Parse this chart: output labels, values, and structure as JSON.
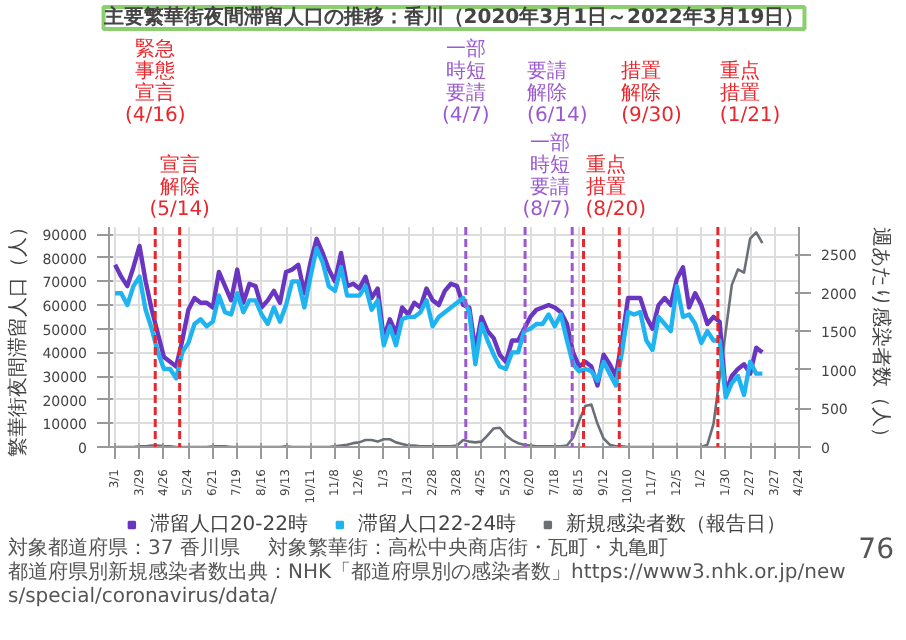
{
  "chart_data": {
    "type": "line",
    "title": "主要繁華街夜間滞留人口の推移：香川（2020年3月1日～2022年3月19日）",
    "ylabel": "繁華街夜間滞留人口（人）",
    "y2label": "週あたり感染者数（人）",
    "x": [
      "2020-03-01",
      "2020-03-08",
      "2020-03-15",
      "2020-03-22",
      "2020-03-29",
      "2020-04-05",
      "2020-04-12",
      "2020-04-19",
      "2020-04-26",
      "2020-05-03",
      "2020-05-10",
      "2020-05-17",
      "2020-05-24",
      "2020-05-31",
      "2020-06-07",
      "2020-06-14",
      "2020-06-21",
      "2020-06-28",
      "2020-07-05",
      "2020-07-12",
      "2020-07-19",
      "2020-07-26",
      "2020-08-02",
      "2020-08-09",
      "2020-08-16",
      "2020-08-23",
      "2020-08-30",
      "2020-09-06",
      "2020-09-13",
      "2020-09-20",
      "2020-09-27",
      "2020-10-04",
      "2020-10-11",
      "2020-10-18",
      "2020-10-25",
      "2020-11-01",
      "2020-11-08",
      "2020-11-15",
      "2020-11-22",
      "2020-11-29",
      "2020-12-06",
      "2020-12-13",
      "2020-12-20",
      "2020-12-27",
      "2021-01-03",
      "2021-01-10",
      "2021-01-17",
      "2021-01-24",
      "2021-01-31",
      "2021-02-07",
      "2021-02-14",
      "2021-02-21",
      "2021-02-28",
      "2021-03-07",
      "2021-03-14",
      "2021-03-21",
      "2021-03-28",
      "2021-04-04",
      "2021-04-11",
      "2021-04-18",
      "2021-04-25",
      "2021-05-02",
      "2021-05-09",
      "2021-05-16",
      "2021-05-23",
      "2021-05-30",
      "2021-06-06",
      "2021-06-13",
      "2021-06-20",
      "2021-06-27",
      "2021-07-04",
      "2021-07-11",
      "2021-07-18",
      "2021-07-25",
      "2021-08-01",
      "2021-08-08",
      "2021-08-15",
      "2021-08-22",
      "2021-08-29",
      "2021-09-05",
      "2021-09-12",
      "2021-09-19",
      "2021-09-26",
      "2021-10-03",
      "2021-10-10",
      "2021-10-17",
      "2021-10-24",
      "2021-10-31",
      "2021-11-07",
      "2021-11-14",
      "2021-11-21",
      "2021-11-28",
      "2021-12-05",
      "2021-12-12",
      "2021-12-19",
      "2021-12-26",
      "2022-01-02",
      "2022-01-09",
      "2022-01-16",
      "2022-01-23",
      "2022-01-30",
      "2022-02-06",
      "2022-02-13",
      "2022-02-20",
      "2022-02-27",
      "2022-03-06",
      "2022-03-13"
    ],
    "series": [
      {
        "name": "滞留人口20-22時",
        "color": "#6a35c0",
        "values": [
          77000,
          72000,
          68000,
          76000,
          85000,
          70000,
          58000,
          48000,
          38000,
          36000,
          34000,
          45000,
          58000,
          63000,
          61000,
          61000,
          59000,
          74000,
          68000,
          62000,
          75000,
          61000,
          69000,
          68000,
          59000,
          62000,
          66000,
          61000,
          74000,
          75000,
          77000,
          65000,
          78000,
          88000,
          82000,
          75000,
          70000,
          82000,
          68000,
          69000,
          67000,
          72000,
          63000,
          67000,
          46000,
          54000,
          48000,
          59000,
          56000,
          61000,
          59000,
          67000,
          62000,
          60000,
          66000,
          69000,
          68000,
          60000,
          59000,
          41000,
          55000,
          49000,
          46000,
          39000,
          36000,
          45000,
          45000,
          50000,
          55000,
          58000,
          59000,
          60000,
          59000,
          57000,
          52000,
          40000,
          34000,
          36000,
          34000,
          26000,
          39000,
          35000,
          30000,
          45000,
          63000,
          63000,
          63000,
          55000,
          50000,
          60000,
          63000,
          60000,
          71000,
          76000,
          59000,
          65000,
          60000,
          52000,
          55000,
          53000,
          23000,
          30000,
          33000,
          35000,
          31000,
          42000,
          40000
        ]
      },
      {
        "name": "滞留人口22-24時",
        "color": "#1fb4f0",
        "values": [
          65000,
          65000,
          60000,
          68000,
          72000,
          58000,
          50000,
          40000,
          33000,
          33000,
          29000,
          40000,
          44000,
          52000,
          54000,
          51000,
          53000,
          64000,
          57000,
          56000,
          65000,
          57000,
          62000,
          62000,
          56000,
          52000,
          59000,
          53000,
          60000,
          70000,
          70000,
          59000,
          72000,
          84000,
          78000,
          68000,
          66000,
          76000,
          64000,
          64000,
          64000,
          68000,
          58000,
          62000,
          43000,
          51000,
          43000,
          54000,
          55000,
          55000,
          57000,
          62000,
          51000,
          55000,
          57000,
          59000,
          61000,
          63000,
          57000,
          35000,
          52000,
          45000,
          39000,
          34000,
          33000,
          40000,
          40000,
          49000,
          50000,
          52000,
          52000,
          56000,
          51000,
          56000,
          45000,
          35000,
          32000,
          33000,
          32000,
          28000,
          36000,
          31000,
          26000,
          40000,
          57000,
          56000,
          57000,
          45000,
          41000,
          55000,
          52000,
          49000,
          68000,
          55000,
          56000,
          52000,
          44000,
          49000,
          45000,
          45000,
          21000,
          27000,
          30000,
          22000,
          36000,
          31000,
          31000
        ]
      },
      {
        "name": "新規感染者数（報告日）",
        "color": "#6b6f78",
        "axis": "y2",
        "values": [
          0,
          0,
          0,
          0,
          10,
          10,
          20,
          20,
          10,
          10,
          0,
          0,
          0,
          0,
          0,
          0,
          10,
          10,
          10,
          0,
          0,
          0,
          0,
          0,
          0,
          0,
          0,
          0,
          10,
          0,
          0,
          0,
          0,
          0,
          0,
          0,
          10,
          20,
          30,
          50,
          60,
          90,
          90,
          70,
          100,
          100,
          60,
          40,
          20,
          20,
          10,
          10,
          10,
          10,
          10,
          10,
          20,
          90,
          70,
          60,
          70,
          150,
          240,
          250,
          150,
          90,
          50,
          30,
          20,
          10,
          10,
          10,
          10,
          10,
          20,
          120,
          340,
          530,
          550,
          300,
          110,
          30,
          10,
          10,
          0,
          0,
          0,
          0,
          0,
          0,
          0,
          0,
          0,
          0,
          0,
          0,
          0,
          30,
          300,
          900,
          1500,
          2100,
          2300,
          2260,
          2700,
          2780,
          2640
        ]
      }
    ],
    "xlim": [
      "2020-02-23",
      "2022-04-24"
    ],
    "xticks": [
      {
        "value": "2020-03-01",
        "label": "3/1"
      },
      {
        "value": "2020-03-29",
        "label": "3/29"
      },
      {
        "value": "2020-04-26",
        "label": "4/26"
      },
      {
        "value": "2020-05-24",
        "label": "5/24"
      },
      {
        "value": "2020-06-21",
        "label": "6/21"
      },
      {
        "value": "2020-07-19",
        "label": "7/19"
      },
      {
        "value": "2020-08-16",
        "label": "8/16"
      },
      {
        "value": "2020-09-13",
        "label": "9/13"
      },
      {
        "value": "2020-10-11",
        "label": "10/11"
      },
      {
        "value": "2020-11-08",
        "label": "11/8"
      },
      {
        "value": "2020-12-06",
        "label": "12/6"
      },
      {
        "value": "2021-01-03",
        "label": "1/3"
      },
      {
        "value": "2021-01-31",
        "label": "1/31"
      },
      {
        "value": "2021-02-28",
        "label": "2/28"
      },
      {
        "value": "2021-03-28",
        "label": "3/28"
      },
      {
        "value": "2021-04-25",
        "label": "4/25"
      },
      {
        "value": "2021-05-23",
        "label": "5/23"
      },
      {
        "value": "2021-06-20",
        "label": "6/20"
      },
      {
        "value": "2021-07-18",
        "label": "7/18"
      },
      {
        "value": "2021-08-15",
        "label": "8/15"
      },
      {
        "value": "2021-09-12",
        "label": "9/12"
      },
      {
        "value": "2021-10-10",
        "label": "10/10"
      },
      {
        "value": "2021-11-07",
        "label": "11/7"
      },
      {
        "value": "2021-12-05",
        "label": "12/5"
      },
      {
        "value": "2022-01-02",
        "label": "1/2"
      },
      {
        "value": "2022-01-30",
        "label": "1/30"
      },
      {
        "value": "2022-02-27",
        "label": "2/27"
      },
      {
        "value": "2022-03-27",
        "label": "3/27"
      },
      {
        "value": "2022-04-24",
        "label": "4/24"
      }
    ],
    "ylim": [
      0,
      93000
    ],
    "yticks": [
      0,
      10000,
      20000,
      30000,
      40000,
      50000,
      60000,
      70000,
      80000,
      90000
    ],
    "y2lim": [
      0,
      2850
    ],
    "y2ticks": [
      0,
      500,
      1000,
      1500,
      2000,
      2500
    ],
    "ref_lines": [
      {
        "axis": "x",
        "value": "2020-04-16",
        "label": "緊急事態宣言(4/16)",
        "color": "#e8262b",
        "line_style": "dashed"
      },
      {
        "axis": "x",
        "value": "2020-05-14",
        "label": "宣言解除(5/14)",
        "color": "#e8262b",
        "line_style": "dashed"
      },
      {
        "axis": "x",
        "value": "2021-04-07",
        "label": "一部時短要請(4/7)",
        "color": "#9b59d0",
        "line_style": "dashed"
      },
      {
        "axis": "x",
        "value": "2021-06-14",
        "label": "要請解除(6/14)",
        "color": "#9b59d0",
        "line_style": "dashed"
      },
      {
        "axis": "x",
        "value": "2021-08-07",
        "label": "一部時短要請(8/7)",
        "color": "#9b59d0",
        "line_style": "dashed"
      },
      {
        "axis": "x",
        "value": "2021-08-20",
        "label": "重点措置(8/20)",
        "color": "#e8262b",
        "line_style": "dashed"
      },
      {
        "axis": "x",
        "value": "2021-09-30",
        "label": "措置解除(9/30)",
        "color": "#e8262b",
        "line_style": "dashed"
      },
      {
        "axis": "x",
        "value": "2022-01-21",
        "label": "重点措置(1/21)",
        "color": "#e8262b",
        "line_style": "dashed"
      }
    ],
    "annotations": [
      "対象都道府県：37 香川県",
      "対象繁華街：高松中央商店街・瓦町・丸亀町",
      "都道府県別新規感染者数出典：NHK「都道府県別の感染者数」https://www3.nhk.or.jp/news/special/coronavirus/data/",
      "76"
    ],
    "grid": true,
    "legend": "bottom",
    "line_style": "solid"
  }
}
